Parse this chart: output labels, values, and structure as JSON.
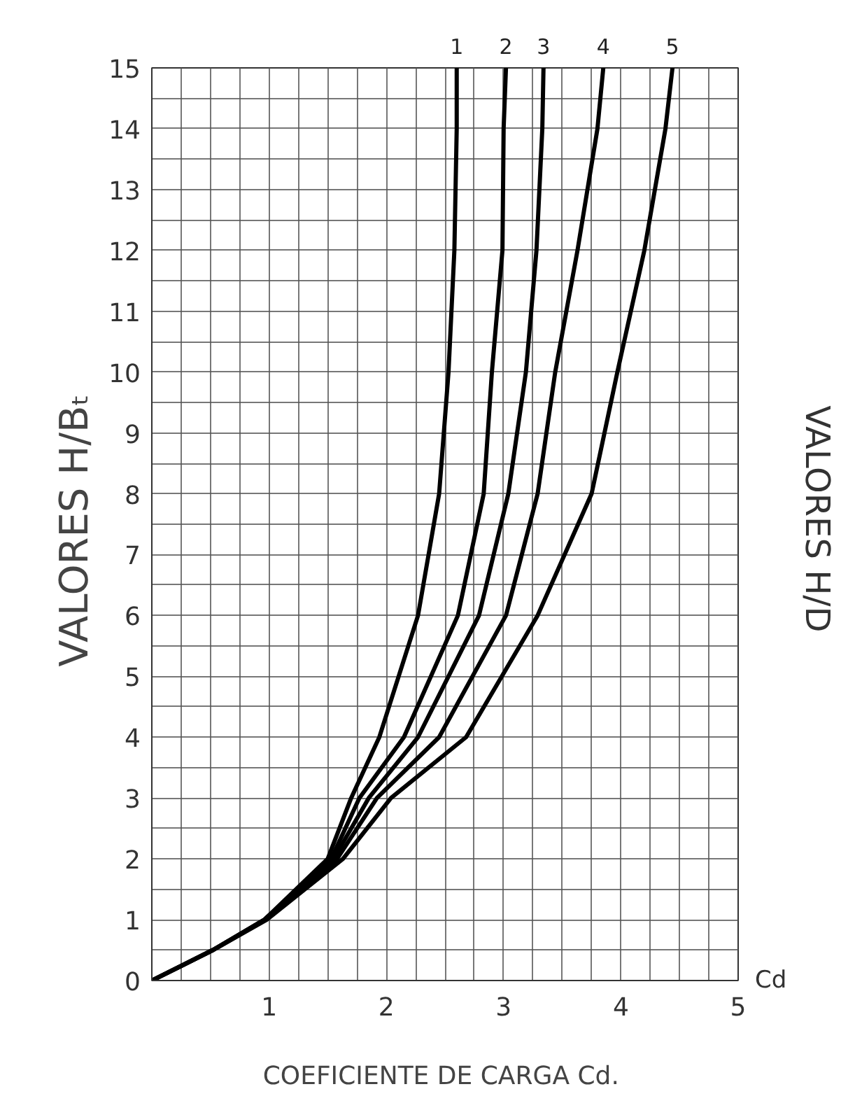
{
  "chart_data": {
    "type": "line",
    "xlabel": "COEFICIENTE DE CARGA  Cd.",
    "ylabel": "VALORES  H/Bₜ",
    "y2label": "VALORES  H/D",
    "annotations": [
      "Cd"
    ],
    "xlim": [
      0,
      5
    ],
    "ylim": [
      0,
      15
    ],
    "xticks": [
      {
        "value": 0,
        "label": null
      },
      {
        "value": 0.25,
        "label": null
      },
      {
        "value": 0.5,
        "label": null
      },
      {
        "value": 0.75,
        "label": null
      },
      1,
      {
        "value": 1.25,
        "label": null
      },
      {
        "value": 1.5,
        "label": null
      },
      {
        "value": 1.75,
        "label": null
      },
      2,
      {
        "value": 2.25,
        "label": null
      },
      {
        "value": 2.5,
        "label": null
      },
      {
        "value": 2.75,
        "label": null
      },
      3,
      {
        "value": 3.25,
        "label": null
      },
      {
        "value": 3.5,
        "label": null
      },
      {
        "value": 3.75,
        "label": null
      },
      4,
      {
        "value": 4.25,
        "label": null
      },
      {
        "value": 4.5,
        "label": null
      },
      {
        "value": 4.75,
        "label": null
      },
      5
    ],
    "yticks": [
      0,
      {
        "value": 0.5,
        "label": null
      },
      1,
      {
        "value": 1.5,
        "label": null
      },
      2,
      {
        "value": 2.5,
        "label": null
      },
      3,
      {
        "value": 3.5,
        "label": null
      },
      4,
      {
        "value": 4.5,
        "label": null
      },
      5,
      {
        "value": 5.5,
        "label": null
      },
      6,
      {
        "value": 6.5,
        "label": null
      },
      7,
      {
        "value": 7.5,
        "label": null
      },
      8,
      {
        "value": 8.5,
        "label": null
      },
      9,
      {
        "value": 9.5,
        "label": null
      },
      10,
      {
        "value": 10.5,
        "label": null
      },
      11,
      {
        "value": 11.5,
        "label": null
      },
      12,
      {
        "value": 12.5,
        "label": null
      },
      13,
      {
        "value": 13.5,
        "label": null
      },
      14,
      {
        "value": 14.5,
        "label": null
      },
      15
    ],
    "grid": true,
    "legend": false,
    "marker": "none",
    "line_style": "solid",
    "series": [
      {
        "name": "1",
        "color": "#000000",
        "x": [
          0,
          0.52,
          0.96,
          1.5,
          1.7,
          1.94,
          2.27,
          2.45,
          2.53,
          2.58,
          2.6,
          2.6
        ],
        "values": [
          0,
          0.5,
          1,
          2,
          3,
          4,
          6,
          8,
          10,
          12,
          14,
          15
        ]
      },
      {
        "name": "2",
        "color": "#000000",
        "x": [
          0,
          0.52,
          0.96,
          1.53,
          1.77,
          2.15,
          2.61,
          2.83,
          2.9,
          2.99,
          3.0,
          3.02
        ],
        "values": [
          0,
          0.5,
          1,
          2,
          3,
          4,
          6,
          8,
          10,
          12,
          14,
          15
        ]
      },
      {
        "name": "3",
        "color": "#000000",
        "x": [
          0,
          0.52,
          0.96,
          1.55,
          1.85,
          2.27,
          2.79,
          3.04,
          3.19,
          3.28,
          3.33,
          3.34
        ],
        "values": [
          0,
          0.5,
          1,
          2,
          3,
          4,
          6,
          8,
          10,
          12,
          14,
          15
        ]
      },
      {
        "name": "4",
        "color": "#000000",
        "x": [
          0,
          0.52,
          0.97,
          1.58,
          1.92,
          2.45,
          3.02,
          3.29,
          3.44,
          3.63,
          3.8,
          3.85
        ],
        "values": [
          0,
          0.5,
          1,
          2,
          3,
          4,
          6,
          8,
          10,
          12,
          14,
          15
        ]
      },
      {
        "name": "5",
        "color": "#000000",
        "x": [
          0,
          0.52,
          0.98,
          1.63,
          2.04,
          2.68,
          3.29,
          3.75,
          3.97,
          4.2,
          4.38,
          4.44
        ],
        "values": [
          0,
          0.5,
          1,
          2,
          3,
          4,
          6,
          8,
          10,
          12,
          14,
          15
        ]
      }
    ]
  }
}
